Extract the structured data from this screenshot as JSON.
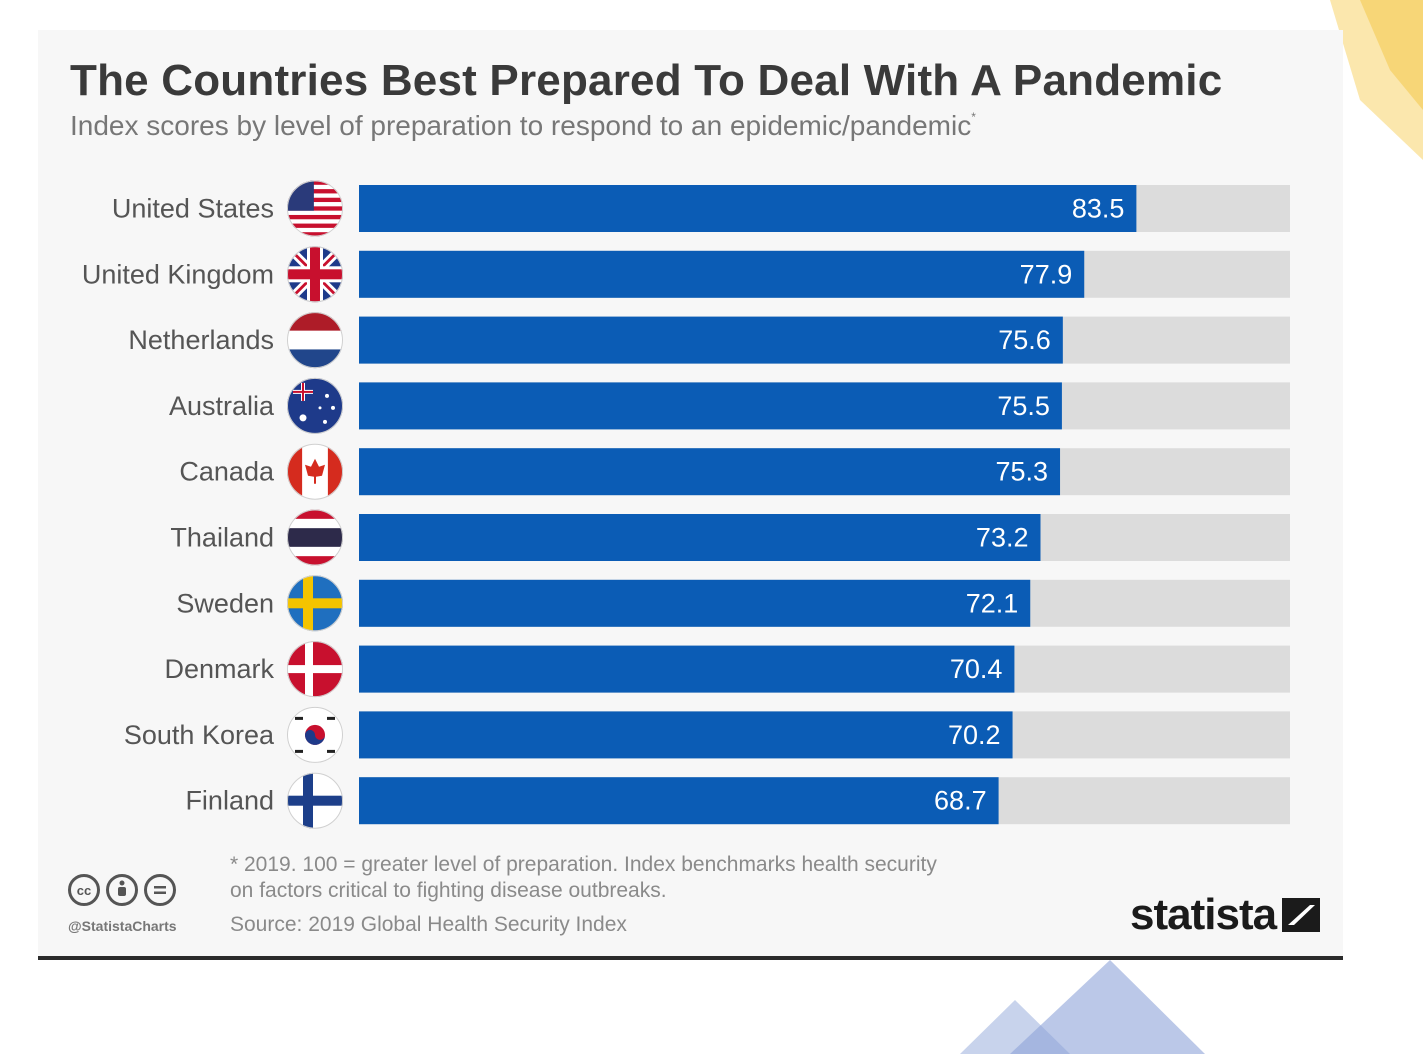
{
  "title": "The Countries Best Prepared To Deal With A Pandemic",
  "subtitle": "Index scores by level of preparation to respond to an epidemic/pandemic",
  "subtitle_mark": "*",
  "footnote": "* 2019. 100 = greater level of preparation. Index benchmarks health security\non factors critical to fighting disease outbreaks.",
  "source": "Source: 2019 Global Health Security Index",
  "handle": "@StatistaCharts",
  "brand": "statista",
  "license_icons": [
    "cc-icon",
    "by-icon",
    "nd-icon"
  ],
  "colors": {
    "bar": "#0b5cb5",
    "track": "#dcdcdc",
    "label": "#555555",
    "value": "#ffffff"
  },
  "chart_data": {
    "type": "bar",
    "orientation": "horizontal",
    "categories": [
      "United States",
      "United Kingdom",
      "Netherlands",
      "Australia",
      "Canada",
      "Thailand",
      "Sweden",
      "Denmark",
      "South Korea",
      "Finland"
    ],
    "values": [
      83.5,
      77.9,
      75.6,
      75.5,
      75.3,
      73.2,
      72.1,
      70.4,
      70.2,
      68.7
    ],
    "value_labels": [
      "83.5",
      "77.9",
      "75.6",
      "75.5",
      "75.3",
      "73.2",
      "72.1",
      "70.4",
      "70.2",
      "68.7"
    ],
    "flags": [
      "us-flag-icon",
      "uk-flag-icon",
      "netherlands-flag-icon",
      "australia-flag-icon",
      "canada-flag-icon",
      "thailand-flag-icon",
      "sweden-flag-icon",
      "denmark-flag-icon",
      "south-korea-flag-icon",
      "finland-flag-icon"
    ],
    "xlim": [
      0,
      100
    ],
    "grid": false,
    "legend": "none"
  }
}
